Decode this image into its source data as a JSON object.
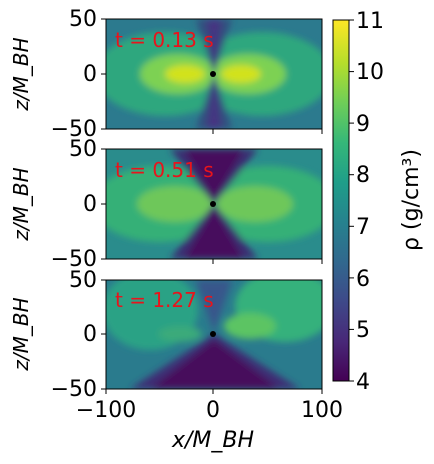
{
  "chart_data": {
    "type": "heatmap",
    "panels": [
      {
        "time_label": "t = 0.13 s",
        "time_value": "0.13",
        "ylabel": "z/M_BH"
      },
      {
        "time_label": "t = 0.51 s",
        "time_value": "0.51",
        "ylabel": "z/M_BH"
      },
      {
        "time_label": "t = 1.27 s",
        "time_value": "1.27",
        "ylabel": "z/M_BH"
      }
    ],
    "xlabel": "x/M_BH",
    "ylabel": "z/M_BH",
    "x_ticks": [
      "−100",
      "0",
      "100"
    ],
    "y_ticks": [
      "50",
      "0",
      "−50"
    ],
    "xlim": [
      -100,
      100
    ],
    "ylim": [
      -50,
      50
    ],
    "colorbar": {
      "label": "ρ (g/cm³)",
      "ticks": [
        "4",
        "5",
        "6",
        "7",
        "8",
        "9",
        "10",
        "11"
      ],
      "range": [
        4,
        11
      ],
      "colormap": "viridis"
    }
  },
  "colors": {
    "time_label": "#e8141c",
    "black_hole": "#000000",
    "viridis": [
      "#440154",
      "#482878",
      "#3e4989",
      "#31688e",
      "#26828e",
      "#1f9e89",
      "#35b779",
      "#6ece58",
      "#b5de2b",
      "#fde725"
    ]
  }
}
